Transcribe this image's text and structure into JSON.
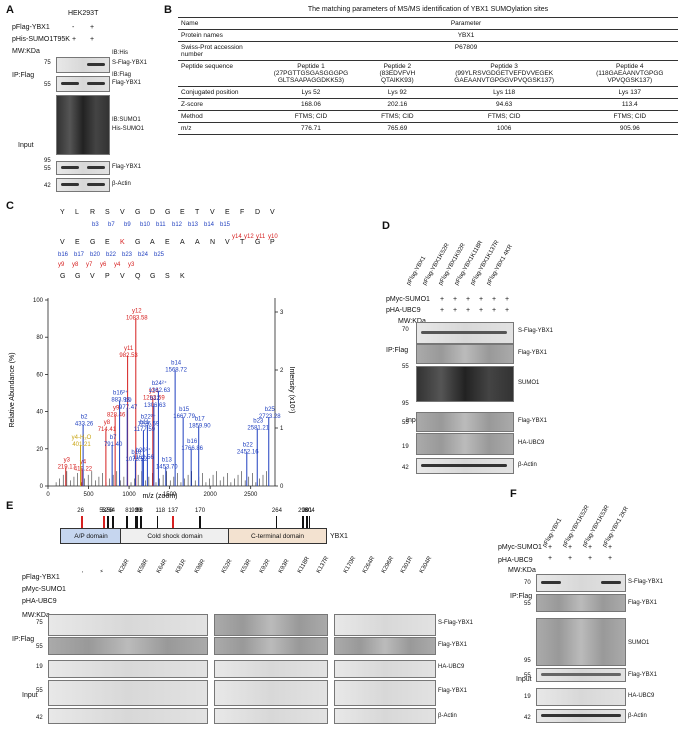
{
  "panelA": {
    "letter": "A",
    "cell": "HEK293T",
    "rows": [
      "pFlag-YBX1",
      "pHis-SUMO1T95K"
    ],
    "signs": [
      "-",
      "+",
      "+",
      "+"
    ],
    "mw": "MW:KDa",
    "ip": "IP:Flag",
    "input": "Input",
    "labels": [
      "IB:His",
      "S-Flag-YBX1",
      "IB:Flag",
      "Flag-YBX1",
      "IB:SUMO1",
      "His-SUMO1",
      "Flag-YBX1",
      "β-Actin"
    ],
    "markers": [
      "75",
      "55",
      "95",
      "55",
      "42"
    ]
  },
  "panelB": {
    "letter": "B",
    "title": "The matching parameters of MS/MS identification of YBX1 SUMOylation sites",
    "header": [
      "Name",
      "Parameter"
    ],
    "rows": [
      {
        "name": "Protein names",
        "value": "YBX1"
      },
      {
        "name": "Swiss-Prot accession number",
        "value": "P67809"
      }
    ],
    "peptides": [
      "Peptide 1",
      "Peptide 2",
      "Peptide 3",
      "Peptide 4"
    ],
    "sequence_label": "Peptide sequence",
    "sequences": [
      "(27PGTTGSGASGGGPG GLTSAAPAGGDKK53)",
      "(83EDVFVH QTAIKK93)",
      "(99YLRSVGDGETVEFDVVEGEK GAEAANVTGPGGVPVQGSK137)",
      "(118GAEAANVTGPGG VPVQGSK137)"
    ],
    "conj_label": "Conjugated position",
    "conj": [
      "Lys 52",
      "Lys 92",
      "Lys 118",
      "Lys 137"
    ],
    "z_label": "Z-score",
    "z": [
      "168.06",
      "202.16",
      "94.63",
      "113.4"
    ],
    "method_label": "Method",
    "method": [
      "FTMS; CID",
      "FTMS; CID",
      "FTMS; CID",
      "FTMS; CID"
    ],
    "mz_label": "m/z",
    "mz": [
      "776.71",
      "765.69",
      "1006",
      "905.96"
    ]
  },
  "panelC": {
    "letter": "C",
    "seq_top": [
      "Y",
      "L",
      "R",
      "S",
      "V",
      "G",
      "D",
      "G",
      "E",
      "T",
      "V",
      "E",
      "F",
      "D",
      "V"
    ],
    "b_top": [
      "b3",
      "b7",
      "b9",
      "b10",
      "b11",
      "b12",
      "b13",
      "b14",
      "b15"
    ],
    "seq_bottom": [
      "V",
      "E",
      "G",
      "E",
      "K",
      "G",
      "A",
      "E",
      "A",
      "A",
      "N",
      "V",
      "T",
      "G",
      "P"
    ],
    "b_bottom": [
      "b16",
      "b17",
      "b20",
      "b22",
      "b23",
      "b24",
      "b25"
    ],
    "y_bottom": [
      "y14",
      "y12",
      "y11",
      "y10"
    ],
    "y_last": [
      "y9",
      "y8",
      "y7",
      "y6",
      "y4",
      "y3"
    ],
    "seq_last": [
      "G",
      "G",
      "V",
      "P",
      "V",
      "Q",
      "G",
      "S",
      "K"
    ],
    "ylabel": "Relative Abundance (%)",
    "y2label": "Intensity (x10⁵)",
    "xlabel": "m/z (zoom)",
    "xticks": [
      "0",
      "500",
      "1000",
      "1500",
      "2000",
      "2500"
    ],
    "yticks": [
      "0",
      "20",
      "40",
      "60",
      "80",
      "100"
    ],
    "y2ticks": [
      "0",
      "1",
      "2",
      "3"
    ],
    "peaks_red": [
      {
        "label": "y12 1083.58",
        "mz": 1083,
        "h": 90
      },
      {
        "label": "y11 982.53",
        "mz": 982,
        "h": 70
      },
      {
        "label": "y14 1293.69",
        "mz": 1293,
        "h": 47
      },
      {
        "label": "y9 828.46",
        "mz": 828,
        "h": 38
      },
      {
        "label": "y8 714.41",
        "mz": 714,
        "h": 30
      },
      {
        "label": "y3 219.17",
        "mz": 219,
        "h": 10
      },
      {
        "label": "y4 419.22",
        "mz": 419,
        "h": 9
      }
    ],
    "peaks_blue": [
      {
        "label": "b14 1568.72",
        "mz": 1568,
        "h": 62
      },
      {
        "label": "b24²⁺ 1362.63",
        "mz": 1362,
        "h": 51
      },
      {
        "label": "b12 1306.63",
        "mz": 1306,
        "h": 43
      },
      {
        "label": "b16²⁺ 883.93",
        "mz": 883,
        "h": 46
      },
      {
        "label": "b9 977.47",
        "mz": 977,
        "h": 42
      },
      {
        "label": "b15 1667.79",
        "mz": 1667,
        "h": 37
      },
      {
        "label": "b22²⁺ 1226.59",
        "mz": 1226,
        "h": 33
      },
      {
        "label": "b17 1859.90",
        "mz": 1859,
        "h": 32
      },
      {
        "label": "b11 1177.59",
        "mz": 1177,
        "h": 30
      },
      {
        "label": "b25 2723.28",
        "mz": 2723,
        "h": 37
      },
      {
        "label": "b23 2581.21",
        "mz": 2581,
        "h": 31
      },
      {
        "label": "b2 433.26",
        "mz": 433,
        "h": 33
      },
      {
        "label": "b16 1766.86",
        "mz": 1766,
        "h": 20
      },
      {
        "label": "b10 1078.52",
        "mz": 1078,
        "h": 14
      },
      {
        "label": "b20²⁺ 1162.56",
        "mz": 1162,
        "h": 15
      },
      {
        "label": "b13 1453.70",
        "mz": 1453,
        "h": 10
      },
      {
        "label": "b22 2452.16",
        "mz": 2452,
        "h": 18
      },
      {
        "label": "b7 791.40",
        "mz": 791,
        "h": 22
      }
    ],
    "peaks_yellow": [
      {
        "label": "y4-H₂O 401.21",
        "mz": 401,
        "h": 22
      }
    ]
  },
  "panelD": {
    "letter": "D",
    "lanes": [
      "pFlag-YBX1",
      "pFlag-YBX1K52R",
      "pFlag-YBX1K92R",
      "pFlag-YBX1K118R",
      "pFlag-YBX1K137R",
      "pFlag-YBX1 4KR"
    ],
    "rows": [
      "pMyc-SUMO1",
      "pHA-UBC9"
    ],
    "mw": "MW:KDa",
    "ip": "IP:Flag",
    "input": "Input",
    "labels": [
      "S-Flag-YBX1",
      "Flag-YBX1",
      "SUMO1",
      "Flag-YBX1",
      "HA-UBC9",
      "β-Actin"
    ],
    "markers": [
      "70",
      "55",
      "95",
      "55",
      "19",
      "42"
    ]
  },
  "panelE": {
    "letter": "E",
    "domain_ticks": [
      "26",
      "52",
      "53",
      "58",
      "64",
      "81",
      "92",
      "93",
      "98",
      "118",
      "137",
      "170",
      "264",
      "296",
      "301",
      "304"
    ],
    "domains": [
      "A/P domain",
      "Cold shock domain",
      "C-terminal domain"
    ],
    "protein": "YBX1",
    "rows": [
      "pFlag-YBX1",
      "pMyc-SUMO1",
      "pHA-UBC9"
    ],
    "lanes1": [
      "-",
      "+",
      "K26R",
      "K58R",
      "K64R",
      "K81R",
      "K98R"
    ],
    "lanes2": [
      "K52R",
      "K53R",
      "K92R",
      "K93R",
      "K118R",
      "K137R"
    ],
    "lanes3": [
      "K170R",
      "K264R",
      "K296R",
      "K301R",
      "K304R"
    ],
    "mw": "MW:KDa",
    "ip": "IP:Flag",
    "input": "Input",
    "labels": [
      "S-Flag-YBX1",
      "Flag-YBX1",
      "HA-UBC9",
      "Flag-YBX1",
      "β-Actin"
    ],
    "markers": [
      "75",
      "55",
      "19",
      "55",
      "42"
    ]
  },
  "panelF": {
    "letter": "F",
    "lanes": [
      "pFlag-YBX1",
      "pFlag-YBX1K52R",
      "pFlag-YBX1K53R",
      "pFlag-YBX1 2KR"
    ],
    "rows": [
      "pMyc-SUMO1",
      "pHA-UBC9"
    ],
    "mw": "MW:KDa",
    "ip": "IP:Flag",
    "input": "Input",
    "labels": [
      "S-Flag-YBX1",
      "Flag-YBX1",
      "SUMO1",
      "Flag-YBX1",
      "HA-UBC9",
      "β-Actin"
    ],
    "markers": [
      "70",
      "55",
      "95",
      "55",
      "19",
      "42"
    ]
  }
}
